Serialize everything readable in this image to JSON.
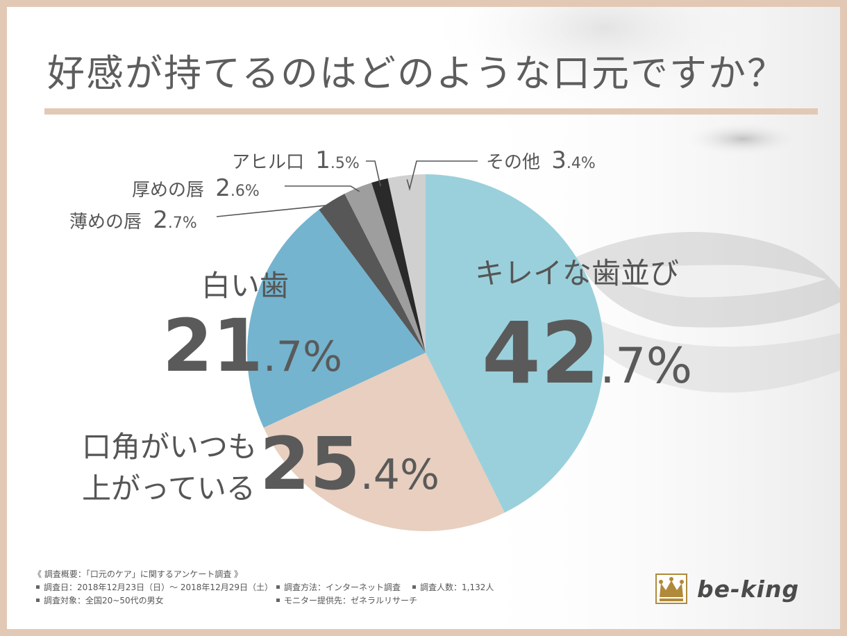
{
  "title": "好感が持てるのはどのような口元ですか？",
  "colors": {
    "frame": "#e2c9b6",
    "title_rule": "#e2c9b6",
    "slice_kirei": "#9ad0db",
    "slice_kouaku": "#e8cfbf",
    "slice_shiroi": "#74b4cf",
    "slice_usume": "#575757",
    "slice_atsume": "#9e9e9e",
    "slice_ahiru": "#2a2a2a",
    "slice_sonota": "#d0d0d0"
  },
  "chart_data": {
    "type": "pie",
    "title": "好感が持てるのはどのような口元ですか？",
    "slices": [
      {
        "key": "kirei",
        "label": "キレイな歯並び",
        "label_line2": "",
        "pct_int": "42",
        "pct_dec": ".7%",
        "value": 42.7
      },
      {
        "key": "kouaku",
        "label": "口角がいつも",
        "label_line2": "上がっている",
        "pct_int": "25",
        "pct_dec": ".4%",
        "value": 25.4
      },
      {
        "key": "shiroi",
        "label": "白い歯",
        "label_line2": "",
        "pct_int": "21",
        "pct_dec": ".7%",
        "value": 21.7
      },
      {
        "key": "usume",
        "label": "薄めの唇",
        "label_line2": "",
        "pct_int": "2",
        "pct_dec": ".7%",
        "value": 2.7
      },
      {
        "key": "atsume",
        "label": "厚めの唇",
        "label_line2": "",
        "pct_int": "2",
        "pct_dec": ".6%",
        "value": 2.6
      },
      {
        "key": "ahiru",
        "label": "アヒル口",
        "label_line2": "",
        "pct_int": "1",
        "pct_dec": ".5%",
        "value": 1.5
      },
      {
        "key": "sonota",
        "label": "その他",
        "label_line2": "",
        "pct_int": "3",
        "pct_dec": ".4%",
        "value": 3.4
      }
    ],
    "start": "top, clockwise"
  },
  "footer": {
    "heading": "《 調査概要：「口元のケア」に関するアンケート調査 》",
    "period": "調査日：2018年12月23日（日）～ 2018年12月29日（土）",
    "method": "調査方法：インターネット調査",
    "count": "調査人数：1,132人",
    "target": "調査対象：全国20~50代の男女",
    "monitor": "モニター提供先：ゼネラルリサーチ"
  },
  "logo": {
    "text": "be-king",
    "icon": "crown-icon"
  }
}
